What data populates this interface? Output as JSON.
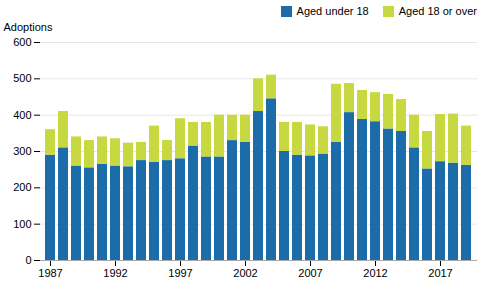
{
  "chart_data": {
    "type": "bar",
    "stacked": true,
    "categories": [
      "1987",
      null,
      null,
      null,
      null,
      "1992",
      null,
      null,
      null,
      null,
      "1997",
      null,
      null,
      null,
      null,
      "2002",
      null,
      null,
      null,
      null,
      "2007",
      null,
      null,
      null,
      null,
      "2012",
      null,
      null,
      null,
      null,
      "2017",
      null,
      null
    ],
    "series": [
      {
        "name": "Aged under 18",
        "color": "#1b6ca8",
        "values": [
          290,
          310,
          260,
          255,
          265,
          260,
          258,
          275,
          270,
          275,
          280,
          315,
          285,
          285,
          330,
          325,
          410,
          445,
          300,
          290,
          288,
          293,
          325,
          407,
          388,
          382,
          362,
          355,
          310,
          252,
          272,
          268,
          262
        ]
      },
      {
        "name": "Aged 18 or over",
        "color": "#c8d840",
        "values": [
          70,
          100,
          80,
          75,
          75,
          75,
          65,
          50,
          100,
          55,
          110,
          65,
          95,
          115,
          70,
          75,
          90,
          65,
          80,
          90,
          85,
          75,
          160,
          80,
          80,
          80,
          95,
          88,
          90,
          103,
          130,
          135,
          108
        ]
      }
    ],
    "ylabel": "Adoptions",
    "ylim": [
      0,
      600
    ],
    "yticks": [
      0,
      100,
      200,
      300,
      400,
      500,
      600
    ],
    "grid": true,
    "legend": "upper right"
  }
}
